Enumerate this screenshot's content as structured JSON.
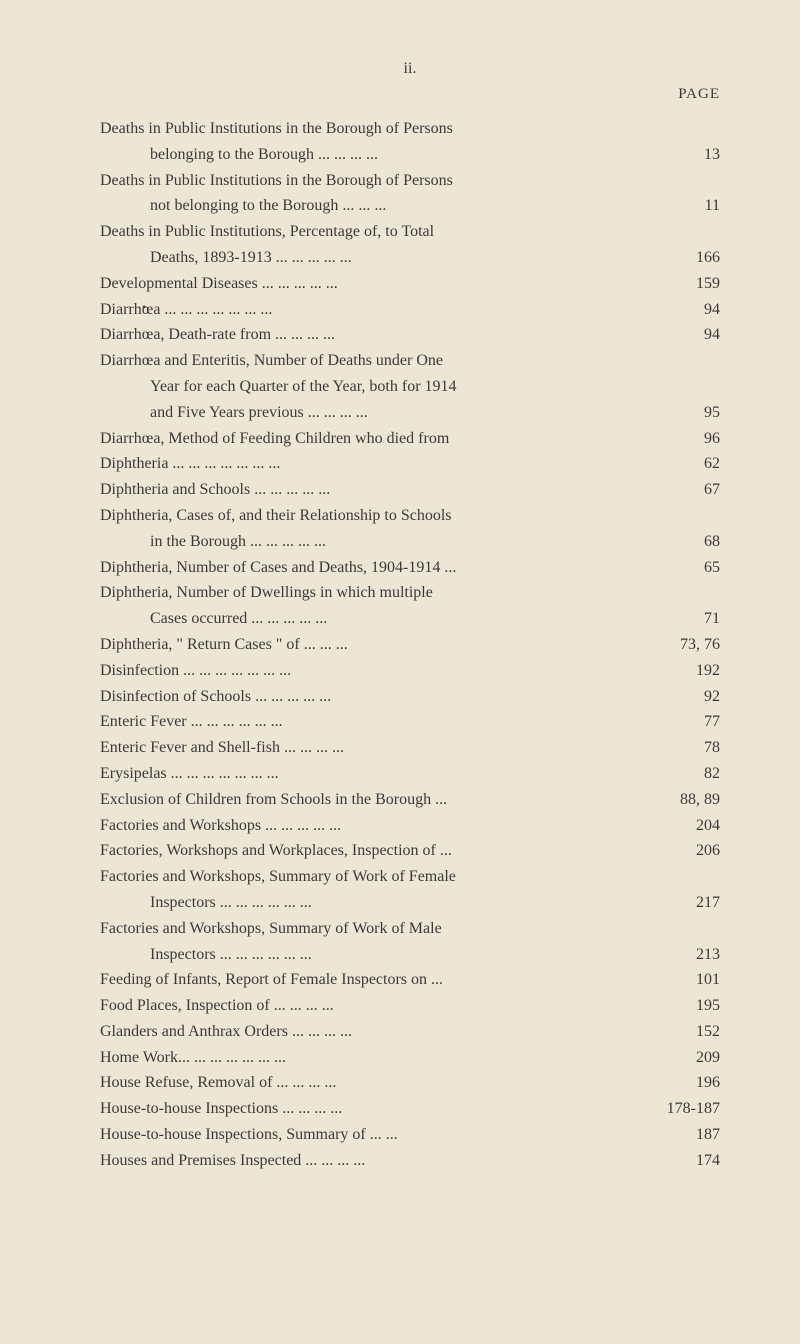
{
  "page_number": "ii.",
  "page_header": "PAGE",
  "entries": [
    {
      "text": "Deaths in Public Institutions in the Borough of Persons",
      "page": "",
      "indent": false
    },
    {
      "text": "belonging to the Borough    ...    ...    ...    ...",
      "page": "13",
      "indent": true
    },
    {
      "text": "Deaths in Public Institutions in the Borough of Persons",
      "page": "",
      "indent": false
    },
    {
      "text": "not belonging to the Borough        ...    ...    ...",
      "page": "11",
      "indent": true
    },
    {
      "text": "Deaths in Public Institutions, Percentage of, to Total",
      "page": "",
      "indent": false
    },
    {
      "text": "Deaths, 1893-1913    ...    ...    ...    ...    ...",
      "page": "166",
      "indent": true
    },
    {
      "text": "Developmental Diseases   ...    ...    ...    ...    ...",
      "page": "159",
      "indent": false
    },
    {
      "text": "Diarrhœa    ...    ...    ...    ...    ...    ...    ...",
      "page": "94",
      "indent": false,
      "bullet": true
    },
    {
      "text": "Diarrhœa, Death-rate from        ...    ...    ...    ...",
      "page": "94",
      "indent": false
    },
    {
      "text": "Diarrhœa and Enteritis, Number of Deaths under One",
      "page": "",
      "indent": false
    },
    {
      "text": "Year for each Quarter of the Year, both for 1914",
      "page": "",
      "indent": true
    },
    {
      "text": "and Five Years previous     ...    ...    ...    ...",
      "page": "95",
      "indent": true
    },
    {
      "text": "Diarrhœa, Method of Feeding Children who died from",
      "page": "96",
      "indent": false
    },
    {
      "text": "Diphtheria  ...    ...    ...    ...    ...    ...    ...",
      "page": "62",
      "indent": false
    },
    {
      "text": "Diphtheria and Schools    ...    ...    ...    ...    ...",
      "page": "67",
      "indent": false
    },
    {
      "text": "Diphtheria, Cases of, and their Relationship to Schools",
      "page": "",
      "indent": false
    },
    {
      "text": "in the Borough        ...    ...    ...    ...    ...",
      "page": "68",
      "indent": true
    },
    {
      "text": "Diphtheria, Number of Cases and Deaths, 1904-1914  ...",
      "page": "65",
      "indent": false
    },
    {
      "text": "Diphtheria, Number of Dwellings in which multiple",
      "page": "",
      "indent": false
    },
    {
      "text": "Cases occurred        ...    ...    ...    ...    ...",
      "page": "71",
      "indent": true
    },
    {
      "text": "Diphtheria, \" Return Cases \" of        ...    ...    ...",
      "page": "73, 76",
      "indent": false
    },
    {
      "text": "Disinfection ...    ...    ...    ...    ...    ...    ...",
      "page": "192",
      "indent": false
    },
    {
      "text": "Disinfection of Schools    ...    ...    ...    ...    ...",
      "page": "92",
      "indent": false
    },
    {
      "text": "Enteric Fever      ...    ...    ...    ...    ...    ...",
      "page": "77",
      "indent": false
    },
    {
      "text": "Enteric Fever and Shell-fish      ...    ...    ...    ...",
      "page": "78",
      "indent": false
    },
    {
      "text": "Erysipelas   ...    ...    ...    ...    ...    ...    ...",
      "page": "82",
      "indent": false
    },
    {
      "text": "Exclusion of Children from Schools in the Borough   ...",
      "page": "88, 89",
      "indent": false
    },
    {
      "text": "Factories and Workshops ...    ...    ...    ...    ...",
      "page": "204",
      "indent": false
    },
    {
      "text": "Factories, Workshops and Workplaces, Inspection of  ...",
      "page": "206",
      "indent": false
    },
    {
      "text": "Factories and Workshops, Summary of Work of Female",
      "page": "",
      "indent": false
    },
    {
      "text": "Inspectors       ...    ...    ...    ...    ...    ...",
      "page": "217",
      "indent": true
    },
    {
      "text": "Factories and Workshops, Summary of Work of Male",
      "page": "",
      "indent": false
    },
    {
      "text": "Inspectors       ...    ...    ...    ...    ...    ...",
      "page": "213",
      "indent": true
    },
    {
      "text": "Feeding of Infants, Report of Female Inspectors on   ...",
      "page": "101",
      "indent": false
    },
    {
      "text": "Food Places, Inspection of        ...    ...    ...    ...",
      "page": "195",
      "indent": false
    },
    {
      "text": "Glanders and Anthrax Orders    ...    ...    ...    ...",
      "page": "152",
      "indent": false
    },
    {
      "text": "Home Work...    ...    ...    ...    ...    ...    ...",
      "page": "209",
      "indent": false
    },
    {
      "text": "House Refuse, Removal of        ...    ...    ...    ...",
      "page": "196",
      "indent": false
    },
    {
      "text": "House-to-house Inspections        ...    ...    ...    ...",
      "page": "178-187",
      "indent": false
    },
    {
      "text": "House-to-house Inspections, Summary of     ...    ...",
      "page": "187",
      "indent": false
    },
    {
      "text": "Houses and Premises Inspected  ...    ...    ...    ...",
      "page": "174",
      "indent": false
    }
  ]
}
